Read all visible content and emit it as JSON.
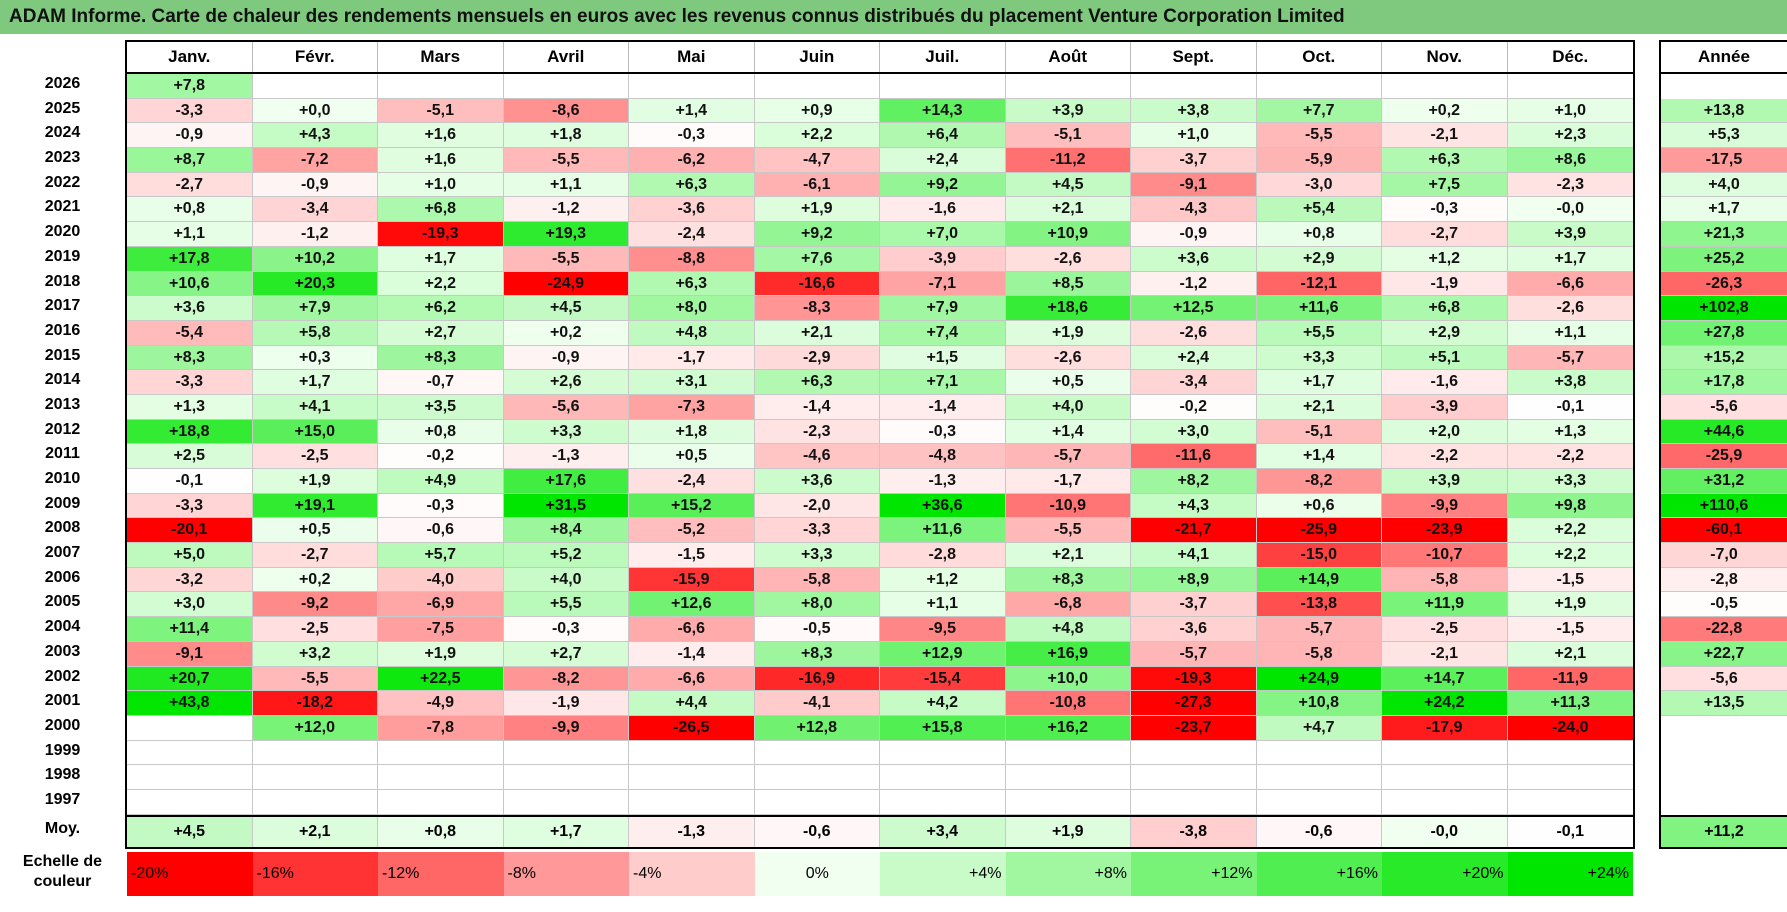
{
  "title": "ADAM Informe. Carte de chaleur des rendements mensuels en euros avec les revenus connus distribués du placement Venture Corporation Limited",
  "months": [
    "Janv.",
    "Févr.",
    "Mars",
    "Avril",
    "Mai",
    "Juin",
    "Juil.",
    "Août",
    "Sept.",
    "Oct.",
    "Nov.",
    "Déc."
  ],
  "annual_header": "Année",
  "avg_label": "Moy.",
  "scale_label": "Echelle de couleur",
  "colors": {
    "title_bg": "#7fc97f",
    "neg_max": "#ff0000",
    "pos_max": "#00dd00",
    "neutral": "#ffffff"
  },
  "chart_data": {
    "type": "heatmap",
    "title": "ADAM Informe. Carte de chaleur des rendements mensuels en euros avec les revenus connus distribués du placement Venture Corporation Limited",
    "columns": [
      "Janv.",
      "Févr.",
      "Mars",
      "Avril",
      "Mai",
      "Juin",
      "Juil.",
      "Août",
      "Sept.",
      "Oct.",
      "Nov.",
      "Déc."
    ],
    "rows": [
      {
        "year": "2026",
        "months": [
          "+7,8",
          "",
          "",
          "",
          "",
          "",
          "",
          "",
          "",
          "",
          "",
          ""
        ],
        "annual": ""
      },
      {
        "year": "2025",
        "months": [
          "-3,3",
          "+0,0",
          "-5,1",
          "-8,6",
          "+1,4",
          "+0,9",
          "+14,3",
          "+3,9",
          "+3,8",
          "+7,7",
          "+0,2",
          "+1,0"
        ],
        "annual": "+13,8"
      },
      {
        "year": "2024",
        "months": [
          "-0,9",
          "+4,3",
          "+1,6",
          "+1,8",
          "-0,3",
          "+2,2",
          "+6,4",
          "-5,1",
          "+1,0",
          "-5,5",
          "-2,1",
          "+2,3"
        ],
        "annual": "+5,3"
      },
      {
        "year": "2023",
        "months": [
          "+8,7",
          "-7,2",
          "+1,6",
          "-5,5",
          "-6,2",
          "-4,7",
          "+2,4",
          "-11,2",
          "-3,7",
          "-5,9",
          "+6,3",
          "+8,6"
        ],
        "annual": "-17,5"
      },
      {
        "year": "2022",
        "months": [
          "-2,7",
          "-0,9",
          "+1,0",
          "+1,1",
          "+6,3",
          "-6,1",
          "+9,2",
          "+4,5",
          "-9,1",
          "-3,0",
          "+7,5",
          "-2,3"
        ],
        "annual": "+4,0"
      },
      {
        "year": "2021",
        "months": [
          "+0,8",
          "-3,4",
          "+6,8",
          "-1,2",
          "-3,6",
          "+1,9",
          "-1,6",
          "+2,1",
          "-4,3",
          "+5,4",
          "-0,3",
          "-0,0"
        ],
        "annual": "+1,7"
      },
      {
        "year": "2020",
        "months": [
          "+1,1",
          "-1,2",
          "-19,3",
          "+19,3",
          "-2,4",
          "+9,2",
          "+7,0",
          "+10,9",
          "-0,9",
          "+0,8",
          "-2,7",
          "+3,9"
        ],
        "annual": "+21,3"
      },
      {
        "year": "2019",
        "months": [
          "+17,8",
          "+10,2",
          "+1,7",
          "-5,5",
          "-8,8",
          "+7,6",
          "-3,9",
          "-2,6",
          "+3,6",
          "+2,9",
          "+1,2",
          "+1,7"
        ],
        "annual": "+25,2"
      },
      {
        "year": "2018",
        "months": [
          "+10,6",
          "+20,3",
          "+2,2",
          "-24,9",
          "+6,3",
          "-16,6",
          "-7,1",
          "+8,5",
          "-1,2",
          "-12,1",
          "-1,9",
          "-6,6"
        ],
        "annual": "-26,3"
      },
      {
        "year": "2017",
        "months": [
          "+3,6",
          "+7,9",
          "+6,2",
          "+4,5",
          "+8,0",
          "-8,3",
          "+7,9",
          "+18,6",
          "+12,5",
          "+11,6",
          "+6,8",
          "-2,6"
        ],
        "annual": "+102,8"
      },
      {
        "year": "2016",
        "months": [
          "-5,4",
          "+5,8",
          "+2,7",
          "+0,2",
          "+4,8",
          "+2,1",
          "+7,4",
          "+1,9",
          "-2,6",
          "+5,5",
          "+2,9",
          "+1,1"
        ],
        "annual": "+27,8"
      },
      {
        "year": "2015",
        "months": [
          "+8,3",
          "+0,3",
          "+8,3",
          "-0,9",
          "-1,7",
          "-2,9",
          "+1,5",
          "-2,6",
          "+2,4",
          "+3,3",
          "+5,1",
          "-5,7"
        ],
        "annual": "+15,2"
      },
      {
        "year": "2014",
        "months": [
          "-3,3",
          "+1,7",
          "-0,7",
          "+2,6",
          "+3,1",
          "+6,3",
          "+7,1",
          "+0,5",
          "-3,4",
          "+1,7",
          "-1,6",
          "+3,8"
        ],
        "annual": "+17,8"
      },
      {
        "year": "2013",
        "months": [
          "+1,3",
          "+4,1",
          "+3,5",
          "-5,6",
          "-7,3",
          "-1,4",
          "-1,4",
          "+4,0",
          "-0,2",
          "+2,1",
          "-3,9",
          "-0,1"
        ],
        "annual": "-5,6"
      },
      {
        "year": "2012",
        "months": [
          "+18,8",
          "+15,0",
          "+0,8",
          "+3,3",
          "+1,8",
          "-2,3",
          "-0,3",
          "+1,4",
          "+3,0",
          "-5,1",
          "+2,0",
          "+1,3"
        ],
        "annual": "+44,6"
      },
      {
        "year": "2011",
        "months": [
          "+2,5",
          "-2,5",
          "-0,2",
          "-1,3",
          "+0,5",
          "-4,6",
          "-4,8",
          "-5,7",
          "-11,6",
          "+1,4",
          "-2,2",
          "-2,2"
        ],
        "annual": "-25,9"
      },
      {
        "year": "2010",
        "months": [
          "-0,1",
          "+1,9",
          "+4,9",
          "+17,6",
          "-2,4",
          "+3,6",
          "-1,3",
          "-1,7",
          "+8,2",
          "-8,2",
          "+3,9",
          "+3,3"
        ],
        "annual": "+31,2"
      },
      {
        "year": "2009",
        "months": [
          "-3,3",
          "+19,1",
          "-0,3",
          "+31,5",
          "+15,2",
          "-2,0",
          "+36,6",
          "-10,9",
          "+4,3",
          "+0,6",
          "-9,9",
          "+9,8"
        ],
        "annual": "+110,6"
      },
      {
        "year": "2008",
        "months": [
          "-20,1",
          "+0,5",
          "-0,6",
          "+8,4",
          "-5,2",
          "-3,3",
          "+11,6",
          "-5,5",
          "-21,7",
          "-25,9",
          "-23,9",
          "+2,2"
        ],
        "annual": "-60,1"
      },
      {
        "year": "2007",
        "months": [
          "+5,0",
          "-2,7",
          "+5,7",
          "+5,2",
          "-1,5",
          "+3,3",
          "-2,8",
          "+2,1",
          "+4,1",
          "-15,0",
          "-10,7",
          "+2,2"
        ],
        "annual": "-7,0"
      },
      {
        "year": "2006",
        "months": [
          "-3,2",
          "+0,2",
          "-4,0",
          "+4,0",
          "-15,9",
          "-5,8",
          "+1,2",
          "+8,3",
          "+8,9",
          "+14,9",
          "-5,8",
          "-1,5"
        ],
        "annual": "-2,8"
      },
      {
        "year": "2005",
        "months": [
          "+3,0",
          "-9,2",
          "-6,9",
          "+5,5",
          "+12,6",
          "+8,0",
          "+1,1",
          "-6,8",
          "-3,7",
          "-13,8",
          "+11,9",
          "+1,9"
        ],
        "annual": "-0,5"
      },
      {
        "year": "2004",
        "months": [
          "+11,4",
          "-2,5",
          "-7,5",
          "-0,3",
          "-6,6",
          "-0,5",
          "-9,5",
          "+4,8",
          "-3,6",
          "-5,7",
          "-2,5",
          "-1,5"
        ],
        "annual": "-22,8"
      },
      {
        "year": "2003",
        "months": [
          "-9,1",
          "+3,2",
          "+1,9",
          "+2,7",
          "-1,4",
          "+8,3",
          "+12,9",
          "+16,9",
          "-5,7",
          "-5,8",
          "-2,1",
          "+2,1"
        ],
        "annual": "+22,7"
      },
      {
        "year": "2002",
        "months": [
          "+20,7",
          "-5,5",
          "+22,5",
          "-8,2",
          "-6,6",
          "-16,9",
          "-15,4",
          "+10,0",
          "-19,3",
          "+24,9",
          "+14,7",
          "-11,9"
        ],
        "annual": "-5,6"
      },
      {
        "year": "2001",
        "months": [
          "+43,8",
          "-18,2",
          "-4,9",
          "-1,9",
          "+4,4",
          "-4,1",
          "+4,2",
          "-10,8",
          "-27,3",
          "+10,8",
          "+24,2",
          "+11,3"
        ],
        "annual": "+13,5"
      },
      {
        "year": "2000",
        "months": [
          "",
          "+12,0",
          "-7,8",
          "-9,9",
          "-26,5",
          "+12,8",
          "+15,8",
          "+16,2",
          "-23,7",
          "+4,7",
          "-17,9",
          "-24,0"
        ],
        "annual": ""
      },
      {
        "year": "1999",
        "months": [
          "",
          "",
          "",
          "",
          "",
          "",
          "",
          "",
          "",
          "",
          "",
          ""
        ],
        "annual": ""
      },
      {
        "year": "1998",
        "months": [
          "",
          "",
          "",
          "",
          "",
          "",
          "",
          "",
          "",
          "",
          "",
          ""
        ],
        "annual": ""
      },
      {
        "year": "1997",
        "months": [
          "",
          "",
          "",
          "",
          "",
          "",
          "",
          "",
          "",
          "",
          "",
          ""
        ],
        "annual": ""
      }
    ],
    "averages": [
      "+4,5",
      "+2,1",
      "+0,8",
      "+1,7",
      "-1,3",
      "-0,6",
      "+3,4",
      "+1,9",
      "-3,8",
      "-0,6",
      "-0,0",
      "-0,1"
    ],
    "annual_average": "+11,2",
    "scale": [
      "-20%",
      "-16%",
      "-12%",
      "-8%",
      "-4%",
      "0%",
      "+4%",
      "+8%",
      "+12%",
      "+16%",
      "+20%",
      "+24%"
    ]
  }
}
